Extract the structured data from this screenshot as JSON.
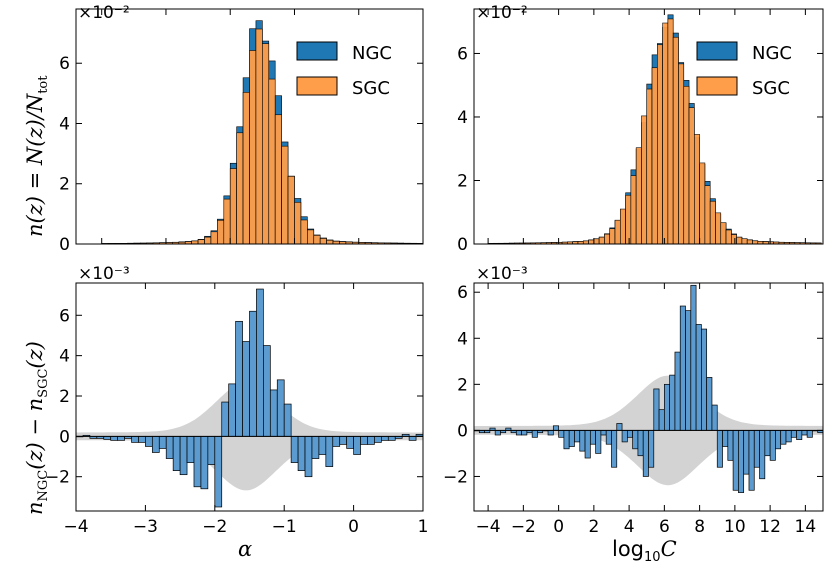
{
  "chart_data": {
    "type": "bar",
    "colors": {
      "ngc": "#1f77b4",
      "sgc": "#ff9e4a",
      "band": "#d3d3d3",
      "diff": "#5b9bd0"
    },
    "panels": [
      {
        "id": "tl",
        "kind": "hist",
        "xlim": [
          -4.4,
          1.0
        ],
        "ylim": [
          0,
          7.8
        ],
        "yticks": [
          0,
          2,
          4,
          6
        ],
        "xticks": [
          -4,
          -3,
          -2,
          -1,
          0,
          1
        ],
        "ytick_labels": [
          "0",
          "2",
          "4",
          "6"
        ],
        "multiplier": "×10⁻²",
        "ylabel": "n(z) = N(z)/N",
        "ylabel_sub": "tot",
        "legend": {
          "position": "top-right",
          "entries": [
            "NGC",
            "SGC"
          ]
        },
        "bin_start": -4.0,
        "bin_width": 0.1,
        "center": -1.55,
        "sigma_left": 0.28,
        "sigma_right": 0.33,
        "peak_ngc": 7.4,
        "peak_sgc": 6.9
      },
      {
        "id": "tr",
        "kind": "hist",
        "xlim": [
          -4.8,
          15.0
        ],
        "ylim": [
          0,
          7.4
        ],
        "yticks": [
          0,
          2,
          4,
          6
        ],
        "xticks": [
          -4,
          -2,
          0,
          2,
          4,
          6,
          8,
          10,
          12,
          14
        ],
        "ytick_labels": [
          "0",
          "2",
          "4",
          "6"
        ],
        "multiplier": "×10⁻²",
        "legend": {
          "position": "top-right",
          "entries": [
            "NGC",
            "SGC"
          ]
        },
        "bin_start": -4.0,
        "bin_width": 0.3,
        "center": 6.2,
        "sigma_left": 1.3,
        "sigma_right": 1.4,
        "peak_ngc": 7.0,
        "peak_sgc": 6.9
      },
      {
        "id": "bl",
        "kind": "diff",
        "xlim": [
          -4.0,
          1.0
        ],
        "ylim": [
          -3.7,
          7.6
        ],
        "yticks": [
          -2,
          0,
          2,
          4,
          6
        ],
        "xticks": [
          -4,
          -3,
          -2,
          -1,
          0,
          1
        ],
        "ytick_labels": [
          "−2",
          "0",
          "2",
          "4",
          "6"
        ],
        "xtick_labels": [
          "−4",
          "−3",
          "−2",
          "−1",
          "0",
          "1"
        ],
        "multiplier": "×10⁻³",
        "ylabel": "n",
        "ylabel_sub1": "NGC",
        "ylabel_mid": "(z) − n",
        "ylabel_sub2": "SGC",
        "ylabel_end": "(z)",
        "xlabel": "α",
        "bin_start": -4.0,
        "bin_width": 0.1,
        "band_center": -1.55,
        "band_sigma": 0.45,
        "band_amp": 2.5,
        "values": [
          0.0,
          0.05,
          -0.1,
          -0.1,
          -0.15,
          -0.2,
          -0.2,
          -0.1,
          -0.3,
          -0.3,
          -0.5,
          -0.8,
          -0.6,
          -1.1,
          -1.7,
          -1.9,
          -1.3,
          -2.5,
          -2.6,
          -1.4,
          -3.5,
          1.7,
          2.6,
          5.7,
          4.7,
          6.2,
          7.3,
          4.5,
          2.3,
          2.8,
          1.6,
          -1.3,
          -1.7,
          -2.0,
          -1.1,
          -0.9,
          -1.5,
          -0.5,
          -0.4,
          -0.6,
          -0.9,
          -0.4,
          -0.4,
          -0.3,
          -0.2,
          -0.2,
          -0.1,
          0.1,
          -0.2,
          0.1
        ]
      },
      {
        "id": "br",
        "kind": "diff",
        "xlim": [
          -4.8,
          15.0
        ],
        "ylim": [
          -3.5,
          6.4
        ],
        "yticks": [
          -2,
          0,
          2,
          4,
          6
        ],
        "xticks": [
          -4,
          -2,
          0,
          2,
          4,
          6,
          8,
          10,
          12,
          14
        ],
        "ytick_labels": [
          "−2",
          "0",
          "2",
          "4",
          "6"
        ],
        "xtick_labels": [
          "−4",
          "−2",
          "0",
          "2",
          "4",
          "6",
          "8",
          "10",
          "12",
          "14"
        ],
        "multiplier": "×10⁻³",
        "xlabel": "log",
        "xlabel_sub": "10",
        "xlabel_end": "C",
        "bin_start": -4.8,
        "bin_width": 0.3,
        "band_center": 6.2,
        "band_sigma": 1.8,
        "band_amp": 2.2,
        "values": [
          0.0,
          -0.1,
          -0.1,
          0.1,
          -0.2,
          -0.1,
          0.1,
          -0.1,
          -0.2,
          -0.2,
          -0.1,
          -0.3,
          -0.1,
          0.0,
          -0.2,
          0.2,
          -0.3,
          -0.8,
          -0.7,
          -0.5,
          -0.9,
          -1.2,
          -0.6,
          -1.0,
          -0.2,
          -0.6,
          -1.6,
          0.3,
          -0.5,
          -0.3,
          -0.8,
          -1.1,
          -2.0,
          -1.6,
          1.8,
          0.9,
          2.0,
          2.4,
          3.4,
          5.4,
          5.2,
          6.3,
          4.6,
          4.4,
          2.3,
          1.1,
          -1.6,
          -0.7,
          -1.3,
          -2.6,
          -2.7,
          -1.9,
          -2.6,
          -1.6,
          -2.1,
          -1.1,
          -1.3,
          -0.8,
          -0.6,
          -0.5,
          -0.3,
          -0.4,
          -0.2,
          -0.3,
          0.0,
          -0.1
        ]
      }
    ]
  }
}
